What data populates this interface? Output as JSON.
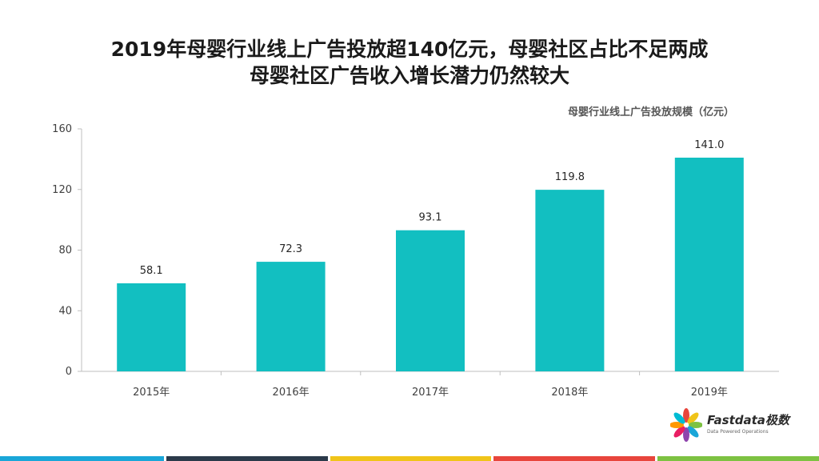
{
  "title": {
    "line1": "2019年母婴行业线上广告投放超140亿元，母婴社区占比不足两成",
    "line2": "母婴社区广告收入增长潜力仍然较大"
  },
  "chart_data": {
    "type": "bar",
    "categories": [
      "2015年",
      "2016年",
      "2017年",
      "2018年",
      "2019年"
    ],
    "series": [
      {
        "name": "母婴行业线上广告投放规模（亿元）",
        "values": [
          58.1,
          72.3,
          93.1,
          119.8,
          141.0
        ]
      }
    ],
    "data_labels": [
      "58.1",
      "72.3",
      "93.1",
      "119.8",
      "141.0"
    ],
    "ylim": [
      0,
      160
    ],
    "yticks": [
      0,
      40,
      80,
      120,
      160
    ],
    "grid": false,
    "legend": "top-right",
    "bar_color": "#12BFC1"
  },
  "logo": {
    "brand": "Fastdata极数",
    "tagline": "Data Powered Operations"
  },
  "footer_stripe_colors": [
    "#1aa6d8",
    "#2b3a4a",
    "#f0c419",
    "#e8453c",
    "#7dc242"
  ]
}
